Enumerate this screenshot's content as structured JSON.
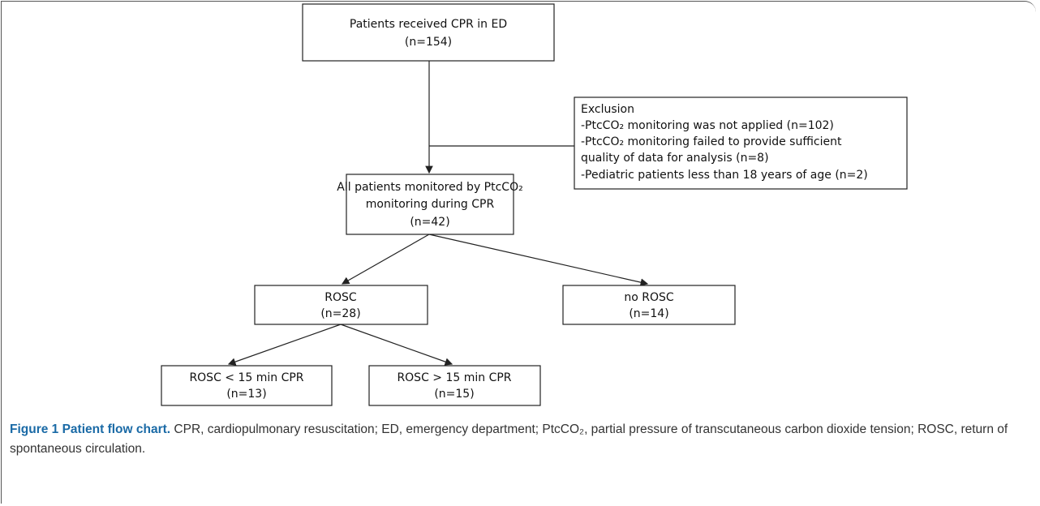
{
  "nodes": [
    {
      "lines": [
        "Patients received CPR in ED",
        "(n=154)"
      ]
    },
    {
      "lines": [
        "Exclusion",
        "-PtcCO₂ monitoring was not applied (n=102)",
        "-PtcCO₂ monitoring failed to provide sufficient",
        "quality of data for analysis (n=8)",
        "-Pediatric patients less than 18 years of age (n=2)"
      ]
    },
    {
      "lines": [
        "All patients monitored by PtcCO₂",
        "monitoring during CPR",
        "(n=42)"
      ]
    },
    {
      "lines": [
        "ROSC",
        "(n=28)"
      ]
    },
    {
      "lines": [
        "no ROSC",
        "(n=14)"
      ]
    },
    {
      "lines": [
        "ROSC < 15 min CPR",
        "(n=13)"
      ]
    },
    {
      "lines": [
        "ROSC > 15 min CPR",
        "(n=15)"
      ]
    }
  ],
  "caption": {
    "label": "Figure 1 Patient flow chart.",
    "text": "CPR, cardiopulmonary resuscitation; ED, emergency department; PtcCO₂, partial pressure of transcutaneous carbon dioxide tension; ROSC, return of spontaneous circulation."
  }
}
